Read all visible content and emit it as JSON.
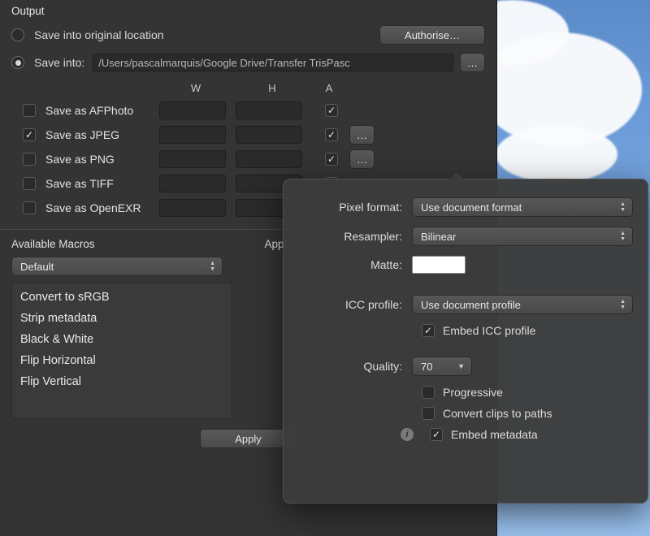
{
  "output": {
    "section_title": "Output",
    "save_original_label": "Save into original location",
    "save_into_label": "Save into:",
    "selected_location": "save_into",
    "path": "/Users/pascalmarquis/Google Drive/Transfer TrisPasc",
    "authorise_label": "Authorise…",
    "browse_label": "…",
    "columns": {
      "w": "W",
      "h": "H",
      "a": "A"
    },
    "formats": [
      {
        "label": "Save as AFPhoto",
        "checked": false,
        "a_checked": true,
        "has_more": false
      },
      {
        "label": "Save as JPEG",
        "checked": true,
        "a_checked": true,
        "has_more": true
      },
      {
        "label": "Save as PNG",
        "checked": false,
        "a_checked": true,
        "has_more": true
      },
      {
        "label": "Save as TIFF",
        "checked": false,
        "a_checked": false,
        "has_more": false
      },
      {
        "label": "Save as OpenEXR",
        "checked": false,
        "a_checked": false,
        "has_more": false
      }
    ]
  },
  "macros": {
    "available_label": "Available Macros",
    "applied_label": "Appl",
    "selected_set": "Default",
    "items": [
      "Convert to sRGB",
      "Strip metadata",
      "Black & White",
      "Flip Horizontal",
      "Flip Vertical"
    ],
    "apply_label": "Apply"
  },
  "popover": {
    "pixel_format_label": "Pixel format:",
    "pixel_format_value": "Use document format",
    "resampler_label": "Resampler:",
    "resampler_value": "Bilinear",
    "matte_label": "Matte:",
    "matte_color": "#ffffff",
    "icc_label": "ICC profile:",
    "icc_value": "Use document profile",
    "embed_icc_label": "Embed ICC profile",
    "embed_icc_checked": true,
    "quality_label": "Quality:",
    "quality_value": "70",
    "progressive_label": "Progressive",
    "progressive_checked": false,
    "convert_clips_label": "Convert clips to paths",
    "convert_clips_checked": false,
    "embed_meta_label": "Embed metadata",
    "embed_meta_checked": true
  },
  "style": {
    "panel_bg": "#343434",
    "popover_bg": "rgba(60,60,60,0.97)",
    "text_color": "#d8d8d8",
    "input_bg": "#2a2a2a"
  }
}
